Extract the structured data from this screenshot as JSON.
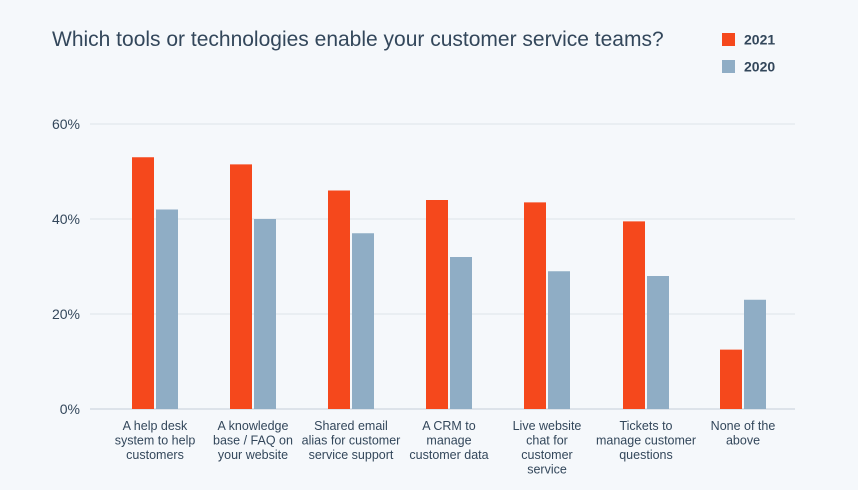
{
  "chart_data": {
    "type": "bar",
    "title": "Which tools or technologies enable your customer service teams?",
    "xlabel": "",
    "ylabel": "",
    "ylim": [
      0,
      60
    ],
    "yticks": [
      {
        "value": 0,
        "label": "0%"
      },
      {
        "value": 20,
        "label": "20%"
      },
      {
        "value": 40,
        "label": "40%"
      },
      {
        "value": 60,
        "label": "60%"
      }
    ],
    "grid": true,
    "legend_position": "top-right",
    "categories": [
      [
        "A help desk",
        "system to help",
        "customers"
      ],
      [
        "A knowledge",
        "base / FAQ on",
        "your website"
      ],
      [
        "Shared email",
        "alias for customer",
        "service support"
      ],
      [
        "A CRM to",
        "manage",
        "customer data"
      ],
      [
        "Live website",
        "chat for",
        "customer",
        "service"
      ],
      [
        "Tickets to",
        "manage customer",
        "questions"
      ],
      [
        "None of the",
        "above"
      ]
    ],
    "series": [
      {
        "name": "2021",
        "color": "#f5481c",
        "values": [
          53,
          51.5,
          46,
          44,
          43.5,
          39.5,
          12.5
        ]
      },
      {
        "name": "2020",
        "color": "#8fadc5",
        "values": [
          42,
          40,
          37,
          32,
          29,
          28,
          23
        ]
      }
    ]
  }
}
